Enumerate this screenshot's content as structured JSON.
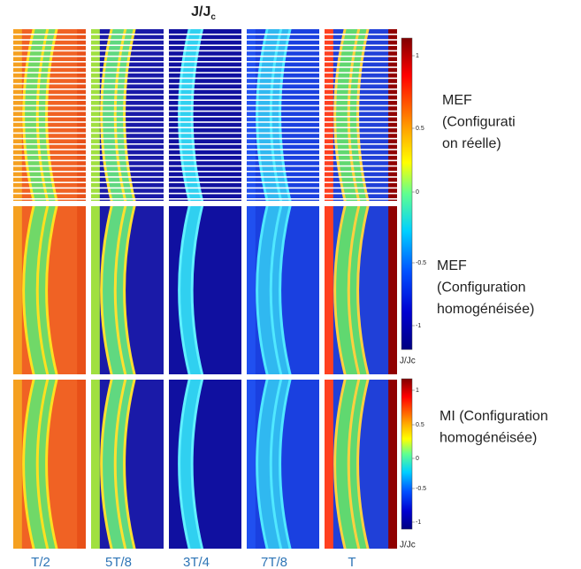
{
  "title": {
    "main": "J/J",
    "sub": "c"
  },
  "columns": [
    "T/2",
    "5T/8",
    "3T/4",
    "7T/8",
    "T"
  ],
  "rows": [
    {
      "lines": [
        "MEF",
        "(Configurati",
        "on réelle)"
      ]
    },
    {
      "lines": [
        "MEF",
        "(Configuration",
        "homogénéisée)"
      ]
    },
    {
      "lines": [
        "MI (Configuration",
        "homogénéisée)"
      ]
    }
  ],
  "colorbars": [
    {
      "ticks": [
        "1",
        "0.5",
        "0",
        "-0.5",
        "-1"
      ],
      "unit": "J/Jc"
    },
    {
      "ticks": [
        "1",
        "0.5",
        "0",
        "-0.5",
        "-1"
      ],
      "unit": "J/Jc"
    }
  ]
}
